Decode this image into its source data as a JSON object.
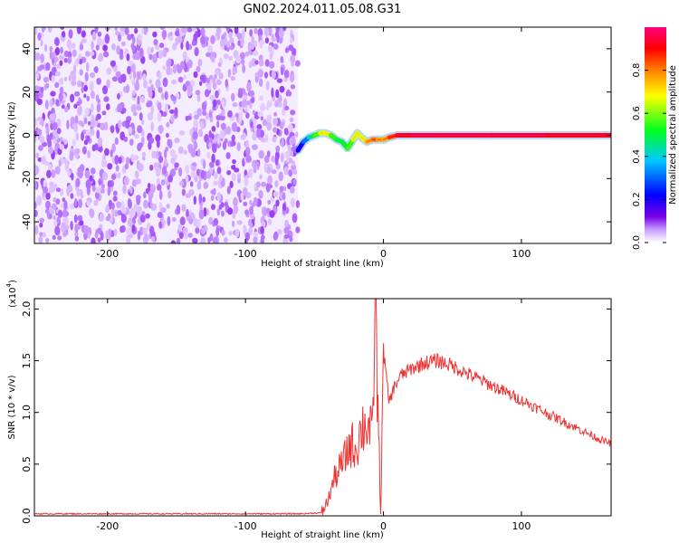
{
  "title": "GN02.2024.011.05.08.G31",
  "chart_data": [
    {
      "type": "heatmap",
      "xlabel": "Height of straight line (km)",
      "ylabel": "Frequency (Hz)",
      "xlim": [
        -253,
        165
      ],
      "ylim": [
        -50,
        50
      ],
      "xticks": [
        -200,
        -100,
        0,
        100
      ],
      "xtick_labels": [
        "-200",
        "-100",
        "0",
        "100"
      ],
      "yticks": [
        -40,
        -20,
        0,
        20,
        40
      ],
      "ytick_labels": [
        "-40",
        "-20",
        "0",
        "20",
        "40"
      ],
      "grid": false,
      "colorbar": {
        "label": "Normalized spectral amplitude",
        "ticks": [
          0.0,
          0.2,
          0.4,
          0.6,
          0.8
        ],
        "tick_labels": [
          "0.0",
          "0.2",
          "0.4",
          "0.6",
          "0.8"
        ],
        "range": [
          0,
          1
        ],
        "colormap": [
          "#ffffff",
          "#b97cff",
          "#7a00e6",
          "#0000ff",
          "#00c8ff",
          "#00ff00",
          "#ffff00",
          "#ff8000",
          "#ff0000",
          "#ff0080"
        ]
      },
      "noise_region_x": [
        -253,
        -62
      ],
      "signal_trace": {
        "x": [
          -62,
          -58,
          -54,
          -50,
          -46,
          -42,
          -38,
          -34,
          -30,
          -26,
          -22,
          -19,
          -16,
          -12,
          -8,
          -4,
          0,
          4,
          10,
          20,
          40,
          80,
          120,
          165
        ],
        "y": [
          -7,
          -3,
          -1,
          0,
          1,
          1,
          0,
          -2,
          -3,
          -6,
          -2,
          1,
          -1,
          -3,
          -2,
          -2,
          -2,
          -1,
          0,
          0,
          0,
          0,
          0,
          0
        ],
        "amplitude": [
          0.2,
          0.3,
          0.4,
          0.5,
          0.6,
          0.7,
          0.6,
          0.5,
          0.5,
          0.5,
          0.6,
          0.7,
          0.6,
          0.7,
          0.8,
          0.8,
          0.7,
          0.8,
          0.9,
          0.95,
          0.97,
          0.95,
          0.95,
          0.9
        ]
      }
    },
    {
      "type": "line",
      "xlabel": "Height of straight line (km)",
      "ylabel": "SNR (10 * v/v)",
      "yscale_label": "(x10",
      "yscale_exp": "4",
      "xlim": [
        -253,
        165
      ],
      "ylim": [
        0,
        2.1
      ],
      "xticks": [
        -200,
        -100,
        0,
        100
      ],
      "xtick_labels": [
        "-200",
        "-100",
        "0",
        "100"
      ],
      "yticks": [
        0.0,
        0.5,
        1.0,
        1.5,
        2.0
      ],
      "ytick_labels": [
        "0.0",
        "0.5",
        "1.0",
        "1.5",
        "2.0"
      ],
      "grid": false,
      "series": [
        {
          "color": "#ee3333",
          "x": [
            -253,
            -200,
            -150,
            -100,
            -60,
            -45,
            -40,
            -36,
            -32,
            -28,
            -24,
            -20,
            -16,
            -12,
            -8,
            -6,
            -4,
            -2,
            0,
            4,
            8,
            12,
            20,
            30,
            40,
            50,
            60,
            80,
            100,
            120,
            140,
            160,
            165
          ],
          "y": [
            0.02,
            0.02,
            0.02,
            0.02,
            0.02,
            0.03,
            0.15,
            0.35,
            0.45,
            0.55,
            0.7,
            0.65,
            0.85,
            0.9,
            0.75,
            2.1,
            1.0,
            0.05,
            1.6,
            1.1,
            1.25,
            1.35,
            1.42,
            1.48,
            1.5,
            1.45,
            1.38,
            1.25,
            1.12,
            0.98,
            0.85,
            0.72,
            0.7
          ]
        }
      ]
    }
  ]
}
